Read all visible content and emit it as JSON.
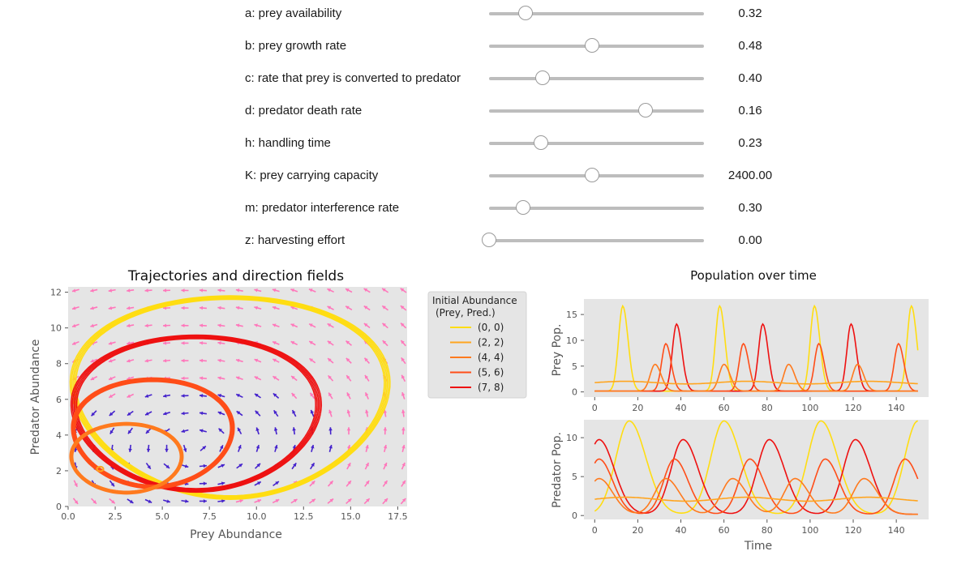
{
  "sliders": [
    {
      "label": "a: prey availability",
      "value": 0.32,
      "display": "0.32",
      "fraction": 0.17
    },
    {
      "label": "b: prey growth rate",
      "value": 0.48,
      "display": "0.48",
      "fraction": 0.48
    },
    {
      "label": "c: rate that prey is converted to predator",
      "value": 0.4,
      "display": "0.40",
      "fraction": 0.25
    },
    {
      "label": "d: predator death rate",
      "value": 0.16,
      "display": "0.16",
      "fraction": 0.73
    },
    {
      "label": "h: handling time",
      "value": 0.23,
      "display": "0.23",
      "fraction": 0.24
    },
    {
      "label": "K: prey carrying capacity",
      "value": 2400,
      "display": "2400.00",
      "fraction": 0.48
    },
    {
      "label": "m: predator interference rate",
      "value": 0.3,
      "display": "0.30",
      "fraction": 0.16
    },
    {
      "label": "z: harvesting effort",
      "value": 0,
      "display": "0.00",
      "fraction": 0.0
    }
  ],
  "colors": {
    "plot_bg": "#e5e5e5",
    "series": [
      "#ffdd11",
      "#ffa520",
      "#ff7a1e",
      "#ff4d18",
      "#ee1111"
    ],
    "arrow_light": "#ff77bb",
    "arrow_dark": "#4422cc"
  },
  "chart_data": [
    {
      "type": "line",
      "title": "Trajectories and direction fields",
      "xlabel": "Prey Abundance",
      "ylabel": "Predator Abundance",
      "xlim": [
        0,
        18
      ],
      "ylim": [
        0,
        12.3
      ],
      "xticks": [
        "0.0",
        "2.5",
        "5.0",
        "7.5",
        "10.0",
        "12.5",
        "15.0",
        "17.5"
      ],
      "yticks": [
        "0",
        "2",
        "4",
        "6",
        "8",
        "10",
        "12"
      ],
      "legend": {
        "title": "Initial Abundance\n(Prey, Pred.)",
        "position": "outside-right",
        "entries": [
          "(0, 0)",
          "(2, 2)",
          "(4, 4)",
          "(5, 6)",
          "(7, 8)"
        ]
      },
      "direction_field": true,
      "limit_cycles": [
        {
          "series": "(0, 0)",
          "center": [
            8.6,
            6.1
          ],
          "rx": [
            8.4,
            8.1
          ],
          "ry": [
            5.7,
            5.5
          ],
          "tilt": 0.15
        },
        {
          "series": "(7, 8)",
          "center": [
            6.8,
            5.2
          ],
          "rx": [
            6.6,
            6.3
          ],
          "ry": [
            4.4,
            4.2
          ],
          "tilt": 0.12
        },
        {
          "series": "(5, 6)",
          "center": [
            4.5,
            4.1
          ],
          "rx": [
            4.3,
            4.1
          ],
          "ry": [
            3.1,
            2.9
          ],
          "tilt": 0.1
        },
        {
          "series": "(4, 4)",
          "center": [
            3.1,
            2.7
          ],
          "rx": [
            3.0,
            2.85
          ],
          "ry": [
            2.0,
            1.85
          ],
          "tilt": 0.05
        },
        {
          "series": "(2, 2)",
          "center": [
            1.7,
            2.1
          ],
          "rx": [
            0.18,
            0.16
          ],
          "ry": [
            0.14,
            0.12
          ],
          "tilt": 0
        }
      ]
    },
    {
      "type": "line",
      "title": "Population over time",
      "xlabel": "",
      "ylabel": "Prey Pop.",
      "xlim": [
        -5,
        155
      ],
      "ylim": [
        -1,
        18
      ],
      "xticks": [
        "0",
        "20",
        "40",
        "60",
        "80",
        "100",
        "120",
        "140"
      ],
      "yticks": [
        "0",
        "5",
        "10",
        "15"
      ],
      "series": [
        {
          "name": "(0, 0)",
          "peaks": [
            13,
            58,
            102,
            147
          ],
          "peak_height": 16.5,
          "width": 3.5
        },
        {
          "name": "(7, 8)",
          "peaks": [
            38,
            78,
            119
          ],
          "peak_height": 13,
          "width": 3.5
        },
        {
          "name": "(5, 6)",
          "peaks": [
            33,
            69,
            104,
            141
          ],
          "peak_height": 9.2,
          "width": 3.5
        },
        {
          "name": "(4, 4)",
          "peaks": [
            28,
            60,
            90,
            122
          ],
          "peak_height": 5.2,
          "width": 4
        },
        {
          "name": "(2, 2)",
          "level": 1.8
        }
      ]
    },
    {
      "type": "line",
      "title": "",
      "xlabel": "Time",
      "ylabel": "Predator Pop.",
      "xlim": [
        -5,
        155
      ],
      "ylim": [
        -0.5,
        12.3
      ],
      "xticks": [
        "0",
        "20",
        "40",
        "60",
        "80",
        "100",
        "120",
        "140"
      ],
      "yticks": [
        "0",
        "5",
        "10"
      ],
      "series": [
        {
          "name": "(0, 0)",
          "peaks": [
            16,
            60,
            105,
            150
          ],
          "peak_height": 12,
          "width": 11
        },
        {
          "name": "(7, 8)",
          "peaks": [
            2,
            41,
            81,
            121
          ],
          "peak_height": 9.6,
          "width": 10
        },
        {
          "name": "(5, 6)",
          "peaks": [
            2,
            37,
            72,
            107,
            144
          ],
          "peak_height": 7.1,
          "width": 9
        },
        {
          "name": "(4, 4)",
          "peaks": [
            2,
            33,
            64,
            93,
            125
          ],
          "peak_height": 4.6,
          "width": 9
        },
        {
          "name": "(2, 2)",
          "level": 2.1
        }
      ]
    }
  ]
}
